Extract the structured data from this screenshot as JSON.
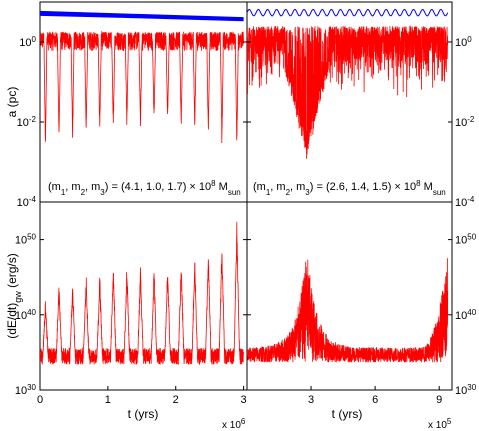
{
  "chart_data": [
    {
      "type": "line",
      "panel": "top-left",
      "ylabel": "a (pc)",
      "yscale": "log",
      "ylim": [
        0.0001,
        10
      ],
      "xlim": [
        0,
        3.05
      ],
      "annotation_prefix": "(m",
      "annotation_mid": ") = (4.1, 1.0, 1.7) × 10",
      "annotation_sup": "8",
      "annotation_suffix": "M",
      "annotation_sub_end": "sun",
      "yticks": [
        {
          "exp": "-4",
          "v": 0.0001
        },
        {
          "exp": "-2",
          "v": 0.01
        },
        {
          "exp": "0",
          "v": 1
        }
      ],
      "series": [
        {
          "color": "#0000ff",
          "envelope": {
            "x": [
              0,
              1.5,
              3.0
            ],
            "hi": [
              6.0,
              5.0,
              4.2
            ],
            "lo": [
              4.5,
              3.9,
              3.3
            ]
          }
        },
        {
          "color": "#ff0000",
          "cusps_x": [
            0.08,
            0.28,
            0.48,
            0.68,
            0.88,
            1.08,
            1.28,
            1.48,
            1.68,
            1.88,
            2.08,
            2.28,
            2.48,
            2.68,
            2.9
          ],
          "cusp_min": [
            0.003,
            0.004,
            0.005,
            0.006,
            0.007,
            0.008,
            0.01,
            0.01,
            0.012,
            0.012,
            0.01,
            0.008,
            0.006,
            0.004,
            0.003
          ],
          "band": [
            0.6,
            1.8
          ]
        }
      ]
    },
    {
      "type": "line",
      "panel": "top-right",
      "yscale": "log",
      "ylim": [
        0.0001,
        10
      ],
      "xlim": [
        0,
        9.6
      ],
      "annotation_prefix": "(m",
      "annotation_mid": ") = (2.6, 1.4, 1.5) × 10",
      "annotation_sup": "8",
      "annotation_suffix": "M",
      "annotation_sub_end": "sun",
      "yticks": [
        {
          "exp": "-4",
          "v": 0.0001
        },
        {
          "exp": "-2",
          "v": 0.01
        },
        {
          "exp": "0",
          "v": 1
        }
      ],
      "series": [
        {
          "color": "#0000ff",
          "oscillations": 22,
          "lo": 4.5,
          "hi": 6.5
        },
        {
          "color": "#ff0000",
          "dip_x": 2.8,
          "dip_min": 0.003,
          "band": [
            0.3,
            2.5
          ]
        }
      ]
    },
    {
      "type": "line",
      "panel": "bottom-left",
      "ylabel": "(dE/dt)",
      "ylabel_sub": "gw",
      "ylabel_suffix": " (erg/s)",
      "xlabel": "t (yrs)",
      "xscale_note_base": "x 10",
      "xscale_note_exp": "6",
      "yscale": "log",
      "ylim": [
        1e+30,
        1e+55
      ],
      "xlim": [
        0,
        3.05
      ],
      "xticks": [
        "0",
        "1",
        "2",
        "3"
      ],
      "yticks": [
        {
          "exp": "30",
          "v": 1e+30
        },
        {
          "exp": "40",
          "v": 1e+40
        },
        {
          "exp": "50",
          "v": 1e+50
        }
      ],
      "series": [
        {
          "color": "#ff0000",
          "baseline": 3e+34,
          "peaks_x": [
            0.08,
            0.28,
            0.48,
            0.68,
            0.88,
            1.08,
            1.28,
            1.48,
            1.68,
            1.88,
            2.08,
            2.28,
            2.48,
            2.68,
            2.9
          ],
          "peaks_y": [
            1e+42,
            1e+44,
            1e+44,
            1e+45,
            1e+45,
            1e+46,
            1e+46,
            1e+46,
            1e+46,
            1e+46,
            1e+47,
            1e+47,
            1e+48,
            1e+49,
            1e+52
          ]
        }
      ]
    },
    {
      "type": "line",
      "panel": "bottom-right",
      "xlabel": "t (yrs)",
      "xscale_note_base": "x 10",
      "xscale_note_exp": "5",
      "yscale": "log",
      "ylim": [
        1e+30,
        1e+55
      ],
      "xlim": [
        0,
        9.6
      ],
      "xticks": [
        "3",
        "6",
        "9"
      ],
      "xtick_values": [
        3,
        6,
        9
      ],
      "yticks": [
        {
          "exp": "30",
          "v": 1e+30
        },
        {
          "exp": "40",
          "v": 1e+40
        },
        {
          "exp": "50",
          "v": 1e+50
        }
      ],
      "series": [
        {
          "color": "#ff0000",
          "baseline": 3e+34,
          "peak_x": 2.8,
          "peak_y": 1e+49,
          "end_peak_y": 1e+48
        }
      ]
    }
  ],
  "colors": {
    "outer": "#0000ff",
    "inner": "#ff0000"
  }
}
